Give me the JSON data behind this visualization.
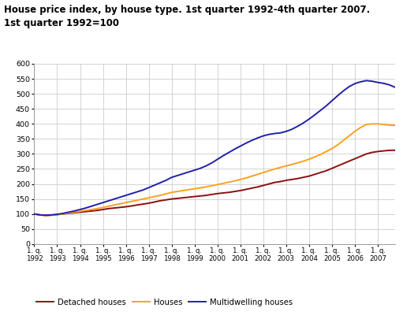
{
  "title_line1": "House price index, by house type. 1st quarter 1992-4th quarter 2007.",
  "title_line2": "1st quarter 1992=100",
  "title_fontsize": 8.5,
  "xlim": [
    0,
    63
  ],
  "ylim": [
    0,
    600
  ],
  "yticks": [
    0,
    50,
    100,
    150,
    200,
    250,
    300,
    350,
    400,
    450,
    500,
    550,
    600
  ],
  "xtick_labels": [
    "1. q.\n1992",
    "1. q.\n1993",
    "1. q.\n1994",
    "1. q.\n1995",
    "1. q.\n1996",
    "1. q.\n1997",
    "1. q.\n1998",
    "1. q.\n1999",
    "1. q.\n2000",
    "1. q.\n2001",
    "1. q.\n2002",
    "1. q.\n2003",
    "1. q.\n2004",
    "1. q.\n2005",
    "1. q.\n2006",
    "1. q.\n2007"
  ],
  "xtick_positions": [
    0,
    4,
    8,
    12,
    16,
    20,
    24,
    28,
    32,
    36,
    40,
    44,
    48,
    52,
    56,
    60
  ],
  "detached": [
    100,
    97,
    95,
    96,
    98,
    100,
    102,
    104,
    106,
    108,
    110,
    112,
    115,
    118,
    120,
    122,
    124,
    127,
    130,
    133,
    136,
    140,
    144,
    147,
    150,
    152,
    154,
    156,
    158,
    160,
    162,
    165,
    168,
    170,
    172,
    175,
    178,
    182,
    186,
    190,
    195,
    200,
    205,
    208,
    212,
    215,
    218,
    222,
    226,
    232,
    238,
    244,
    252,
    260,
    268,
    276,
    284,
    292,
    300,
    305,
    308,
    310,
    312,
    312
  ],
  "houses": [
    100,
    97,
    95,
    96,
    98,
    100,
    103,
    106,
    109,
    112,
    115,
    118,
    122,
    126,
    130,
    134,
    138,
    142,
    146,
    150,
    154,
    158,
    162,
    167,
    172,
    175,
    178,
    181,
    184,
    187,
    190,
    194,
    198,
    202,
    206,
    210,
    215,
    220,
    226,
    232,
    238,
    244,
    250,
    255,
    260,
    265,
    270,
    276,
    282,
    290,
    298,
    308,
    318,
    330,
    345,
    360,
    375,
    388,
    398,
    400,
    400,
    398,
    396,
    395
  ],
  "multidwelling": [
    100,
    97,
    96,
    97,
    99,
    102,
    106,
    110,
    115,
    120,
    126,
    132,
    138,
    144,
    150,
    156,
    162,
    168,
    174,
    180,
    188,
    196,
    204,
    212,
    222,
    228,
    234,
    240,
    246,
    252,
    260,
    270,
    282,
    294,
    305,
    316,
    326,
    336,
    345,
    353,
    360,
    365,
    368,
    370,
    375,
    382,
    392,
    403,
    416,
    430,
    445,
    460,
    477,
    494,
    510,
    524,
    534,
    540,
    544,
    542,
    538,
    535,
    530,
    522
  ],
  "detached_color": "#8B1010",
  "houses_color": "#FFA020",
  "multidwelling_color": "#2020AA",
  "line_width": 1.4,
  "bg_color": "#FFFFFF",
  "grid_color": "#CCCCCC",
  "legend_labels": [
    "Detached houses",
    "Houses",
    "Multidwelling houses"
  ]
}
